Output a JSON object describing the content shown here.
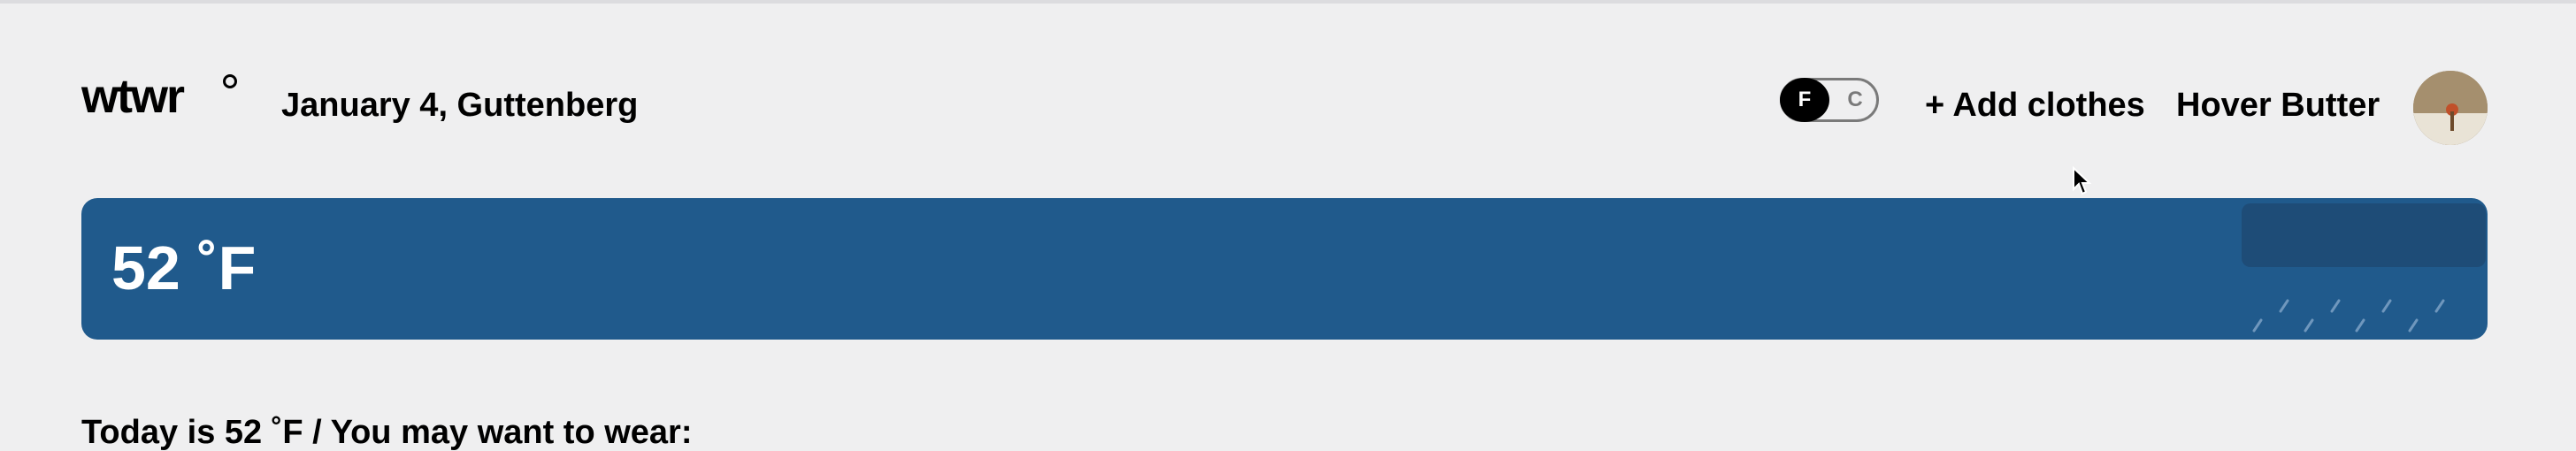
{
  "header": {
    "logo": "wtwr",
    "date_location": "January 4, Guttenberg",
    "unit_toggle": {
      "f_label": "F",
      "c_label": "C",
      "selected": "F"
    },
    "add_clothes_label": "+ Add clothes",
    "username": "Hover Butter"
  },
  "weather": {
    "temperature": "52 ˚F",
    "condition_icon": "rain-icon",
    "card_color": "#205a8c"
  },
  "main": {
    "summary": "Today is 52 ˚F / You may want to wear:"
  }
}
